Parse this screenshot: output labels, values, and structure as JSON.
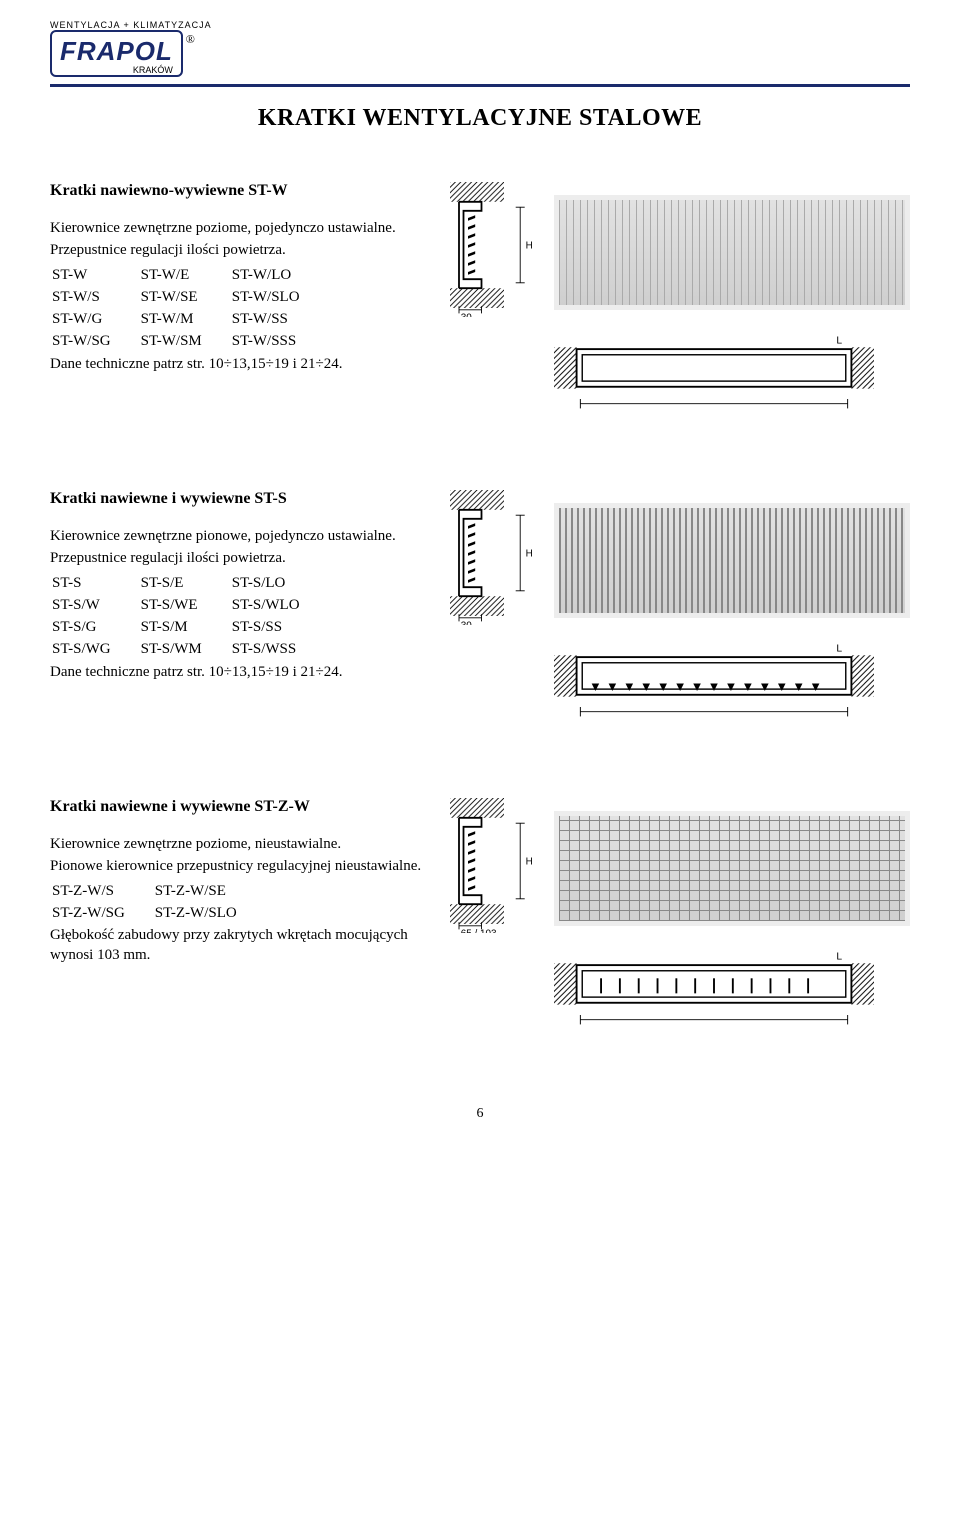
{
  "logo": {
    "tagline": "WENTYLACJA + KLIMATYZACJA",
    "brand": "FRAPOL",
    "city": "KRAKÓW",
    "reg": "®"
  },
  "title": "KRATKI WENTYLACYJNE STALOWE",
  "sections": [
    {
      "heading": "Kratki nawiewno-wywiewne ST-W",
      "desc1": "Kierownice zewnętrzne poziome, pojedynczo ustawialne.",
      "desc2": "Przepustnice regulacji ilości powietrza.",
      "models": [
        [
          "ST-W",
          "ST-W/E",
          "ST-W/LO"
        ],
        [
          "ST-W/S",
          "ST-W/SE",
          "ST-W/SLO"
        ],
        [
          "ST-W/G",
          "ST-W/M",
          "ST-W/SS"
        ],
        [
          "ST-W/SG",
          "ST-W/SM",
          "ST-W/SSS"
        ]
      ],
      "tech": "Dane techniczne patrz str. 10÷13,15÷19 i 21÷24.",
      "dims": {
        "depth": "30",
        "height": "H",
        "length": "L"
      },
      "louvre_orientation": "horizontal",
      "inner_detail": "plain"
    },
    {
      "heading": "Kratki nawiewne i wywiewne ST-S",
      "desc1": "Kierownice zewnętrzne pionowe, pojedynczo ustawialne.",
      "desc2": "Przepustnice regulacji ilości powietrza.",
      "models": [
        [
          "ST-S",
          "ST-S/E",
          "ST-S/LO"
        ],
        [
          "ST-S/W",
          "ST-S/WE",
          "ST-S/WLO"
        ],
        [
          "ST-S/G",
          "ST-S/M",
          "ST-S/SS"
        ],
        [
          "ST-S/WG",
          "ST-S/WM",
          "ST-S/WSS"
        ]
      ],
      "tech": "Dane techniczne patrz str. 10÷13,15÷19 i 21÷24.",
      "dims": {
        "depth": "30",
        "height": "H",
        "length": "L"
      },
      "louvre_orientation": "vertical",
      "inner_detail": "arrows-down"
    },
    {
      "heading": "Kratki nawiewne i wywiewne ST-Z-W",
      "desc1": "Kierownice zewnętrzne poziome, nieustawialne.",
      "desc2": "Pionowe kierownice przepustnicy regulacyjnej nieustawialne.",
      "models": [
        [
          "ST-Z-W/S",
          "ST-Z-W/SE"
        ],
        [
          "ST-Z-W/SG",
          "ST-Z-W/SLO"
        ]
      ],
      "tech_before": "Głębokość zabudowy przy zakrytych wkrętach mocujących wynosi 103 mm.",
      "dims": {
        "depth": "65 / 103",
        "height": "H",
        "length": "L"
      },
      "louvre_orientation": "grid",
      "inner_detail": "ticks"
    }
  ],
  "page_number": "6",
  "styling": {
    "brand_color": "#1a2a6c",
    "text_color": "#000000",
    "background": "#ffffff",
    "body_fontsize": 15,
    "heading_fontsize": 16,
    "title_fontsize": 24
  }
}
